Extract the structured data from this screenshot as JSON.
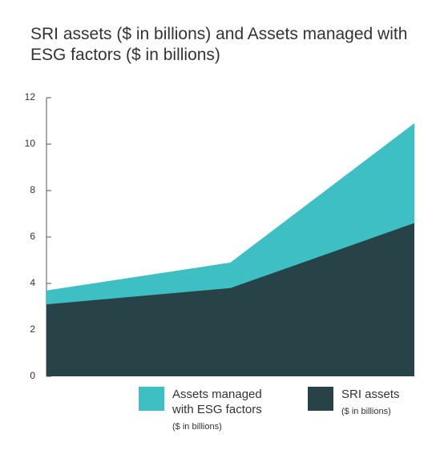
{
  "chart_data": {
    "type": "area",
    "title": "SRI assets ($ in billions) and Assets managed with ESG factors ($ in billions)",
    "categories": [
      null,
      null,
      null
    ],
    "series": [
      {
        "name": "Assets managed with ESG factors",
        "note": "($ in billions)",
        "color": "#3dbfc3",
        "values": [
          3.7,
          4.9,
          10.9
        ]
      },
      {
        "name": "SRI assets",
        "note": "($ in billions)",
        "color": "#284347",
        "values": [
          3.1,
          3.8,
          6.6
        ]
      }
    ],
    "ylim": [
      0,
      12
    ],
    "yticks": [
      0,
      2,
      4,
      6,
      8,
      10,
      12
    ]
  }
}
